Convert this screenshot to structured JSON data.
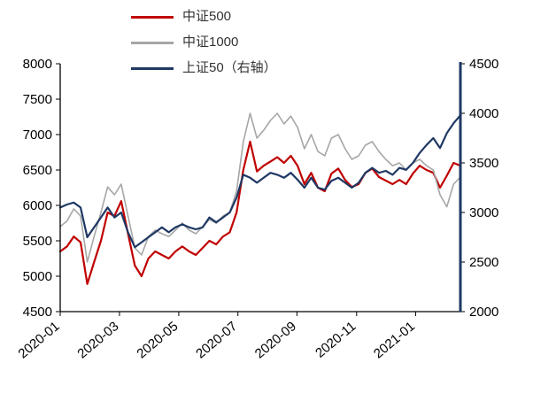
{
  "chart_data": {
    "type": "line",
    "title": "",
    "background": "#ffffff",
    "legend_position": "top",
    "grid": false,
    "x_axis": {
      "ticks": [
        {
          "label": "2020-01",
          "pos": 0
        },
        {
          "label": "2020-03",
          "pos": 8.74
        },
        {
          "label": "2020-05",
          "pos": 17.48
        },
        {
          "label": "2020-07",
          "pos": 26.2
        },
        {
          "label": "2020-09",
          "pos": 34.9
        },
        {
          "label": "2020-11",
          "pos": 43.7
        },
        {
          "label": "2021-01",
          "pos": 52.4
        }
      ]
    },
    "left_axis": {
      "min": 4500,
      "max": 8000,
      "step": 500,
      "tick_values": [
        4500,
        5000,
        5500,
        6000,
        6500,
        7000,
        7500,
        8000
      ],
      "tick_labels": [
        "4500",
        "5000",
        "5500",
        "6000",
        "6500",
        "7000",
        "7500",
        "8000"
      ]
    },
    "right_axis": {
      "min": 2000,
      "max": 4500,
      "step": 500,
      "tick_values": [
        2000,
        2500,
        3000,
        3500,
        4000,
        4500
      ],
      "tick_labels": [
        "2000",
        "2500",
        "3000",
        "3500",
        "4000",
        "4500"
      ],
      "spine_color": "#1F3864"
    },
    "series": [
      {
        "name": "中证500",
        "axis": "left",
        "color": "#C00000",
        "stroke_width": 2.2,
        "values": [
          5350,
          5420,
          5560,
          5480,
          4890,
          5200,
          5500,
          5900,
          5850,
          6060,
          5600,
          5150,
          5000,
          5250,
          5350,
          5300,
          5250,
          5350,
          5420,
          5350,
          5300,
          5400,
          5500,
          5450,
          5560,
          5620,
          5900,
          6500,
          6900,
          6480,
          6560,
          6620,
          6680,
          6600,
          6700,
          6560,
          6300,
          6460,
          6250,
          6200,
          6450,
          6520,
          6360,
          6260,
          6300,
          6460,
          6520,
          6400,
          6350,
          6300,
          6360,
          6300,
          6450,
          6560,
          6500,
          6460,
          6250,
          6420,
          6600,
          6560
        ]
      },
      {
        "name": "中证1000",
        "axis": "left",
        "color": "#A6A6A6",
        "stroke_width": 1.6,
        "values": [
          5700,
          5780,
          5950,
          5850,
          5200,
          5560,
          5900,
          6260,
          6150,
          6300,
          5850,
          5400,
          5300,
          5560,
          5650,
          5600,
          5560,
          5650,
          5750,
          5650,
          5600,
          5700,
          5800,
          5750,
          5850,
          5900,
          6200,
          6900,
          7300,
          6950,
          7060,
          7200,
          7300,
          7150,
          7260,
          7100,
          6800,
          7000,
          6760,
          6700,
          6950,
          7000,
          6800,
          6650,
          6700,
          6850,
          6900,
          6760,
          6650,
          6560,
          6600,
          6500,
          6600,
          6650,
          6560,
          6500,
          6150,
          5980,
          6300,
          6400
        ]
      },
      {
        "name": "上证50（右轴）",
        "axis": "right",
        "color": "#1F3864",
        "stroke_width": 2.2,
        "values": [
          3050,
          3080,
          3100,
          3050,
          2750,
          2850,
          2950,
          3050,
          2950,
          3000,
          2800,
          2650,
          2700,
          2750,
          2800,
          2850,
          2800,
          2850,
          2880,
          2850,
          2830,
          2850,
          2950,
          2900,
          2950,
          3000,
          3150,
          3380,
          3350,
          3300,
          3350,
          3400,
          3380,
          3350,
          3400,
          3330,
          3250,
          3350,
          3250,
          3230,
          3320,
          3350,
          3300,
          3250,
          3300,
          3400,
          3450,
          3400,
          3420,
          3380,
          3450,
          3430,
          3500,
          3600,
          3680,
          3750,
          3650,
          3800,
          3900,
          3980
        ]
      }
    ]
  }
}
